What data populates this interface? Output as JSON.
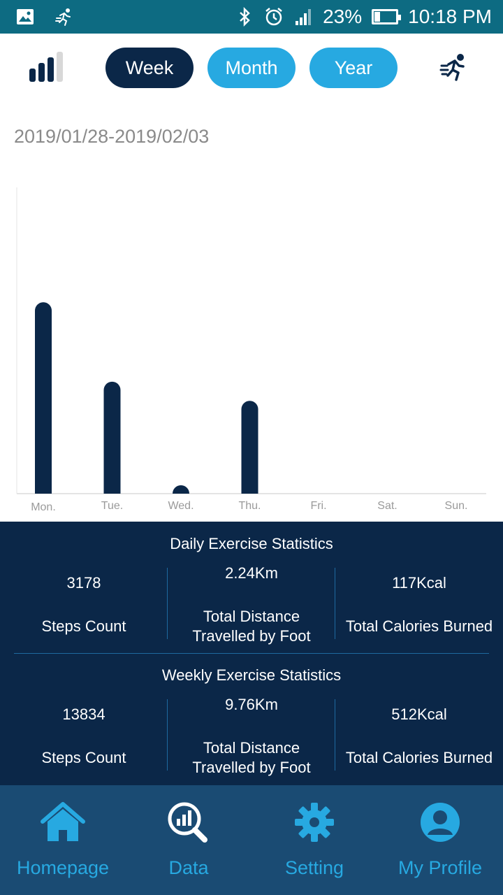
{
  "status_bar": {
    "battery": "23%",
    "time": "10:18 PM"
  },
  "toolbar": {
    "tabs": [
      {
        "label": "Week",
        "selected": true
      },
      {
        "label": "Month",
        "selected": false
      },
      {
        "label": "Year",
        "selected": false
      }
    ]
  },
  "date_range": "2019/01/28-2019/02/03",
  "chart_data": {
    "type": "bar",
    "categories": [
      "Mon.",
      "Tue.",
      "Wed.",
      "Thu.",
      "Fri.",
      "Sat.",
      "Sun."
    ],
    "values": [
      1000,
      585,
      35,
      485,
      0,
      0,
      0
    ],
    "ylim": [
      0,
      1600
    ],
    "grid": false,
    "bar_color": "#0b2748"
  },
  "daily": {
    "title": "Daily Exercise Statistics",
    "steps_value": "3178",
    "steps_label": "Steps Count",
    "distance_value": "2.24Km",
    "distance_label_1": "Total Distance",
    "distance_label_2": "Travelled by Foot",
    "calories_value": "117Kcal",
    "calories_label": "Total Calories Burned"
  },
  "weekly": {
    "title": "Weekly Exercise Statistics",
    "steps_value": "13834",
    "steps_label": "Steps Count",
    "distance_value": "9.76Km",
    "distance_label_1": "Total Distance",
    "distance_label_2": "Travelled by Foot",
    "calories_value": "512Kcal",
    "calories_label": "Total Calories Burned"
  },
  "nav": {
    "items": [
      {
        "label": "Homepage",
        "icon": "home-icon"
      },
      {
        "label": "Data",
        "icon": "data-search-icon"
      },
      {
        "label": "Setting",
        "icon": "gear-icon"
      },
      {
        "label": "My Profile",
        "icon": "profile-icon"
      }
    ]
  },
  "colors": {
    "accent": "#27a9e1",
    "navy": "#0b2748",
    "status_bar": "#0d6b82"
  }
}
